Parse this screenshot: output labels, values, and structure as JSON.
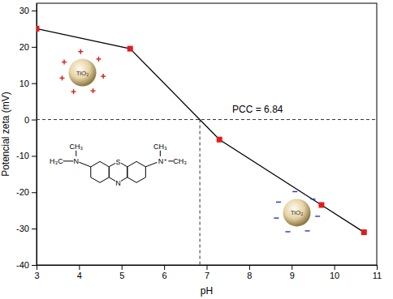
{
  "chart_data": {
    "type": "line",
    "x_label": "pH",
    "y_label": "Potencial zeta (mV)",
    "x": [
      3,
      5.2,
      7.3,
      9.7,
      10.7
    ],
    "series": [
      {
        "values": [
          25,
          19.5,
          -5.5,
          -23.5,
          -31
        ],
        "color": "#e31a1c",
        "marker": "square"
      }
    ],
    "xlim": [
      3,
      11
    ],
    "xticks": [
      3,
      4,
      5,
      6,
      7,
      8,
      9,
      10,
      11
    ],
    "ylim": [
      -40,
      32
    ],
    "yticks": [
      -40,
      -30,
      -20,
      -10,
      0,
      10,
      20,
      30
    ],
    "grid": false,
    "hline": 0,
    "vline": 6.84,
    "annotations": [
      "PCC = 6.84",
      "TiO₂",
      "TiO₂",
      "CH₃",
      "H₃C",
      "N",
      "S",
      "N",
      "N⁺",
      "CH₃",
      "CH₃"
    ]
  }
}
